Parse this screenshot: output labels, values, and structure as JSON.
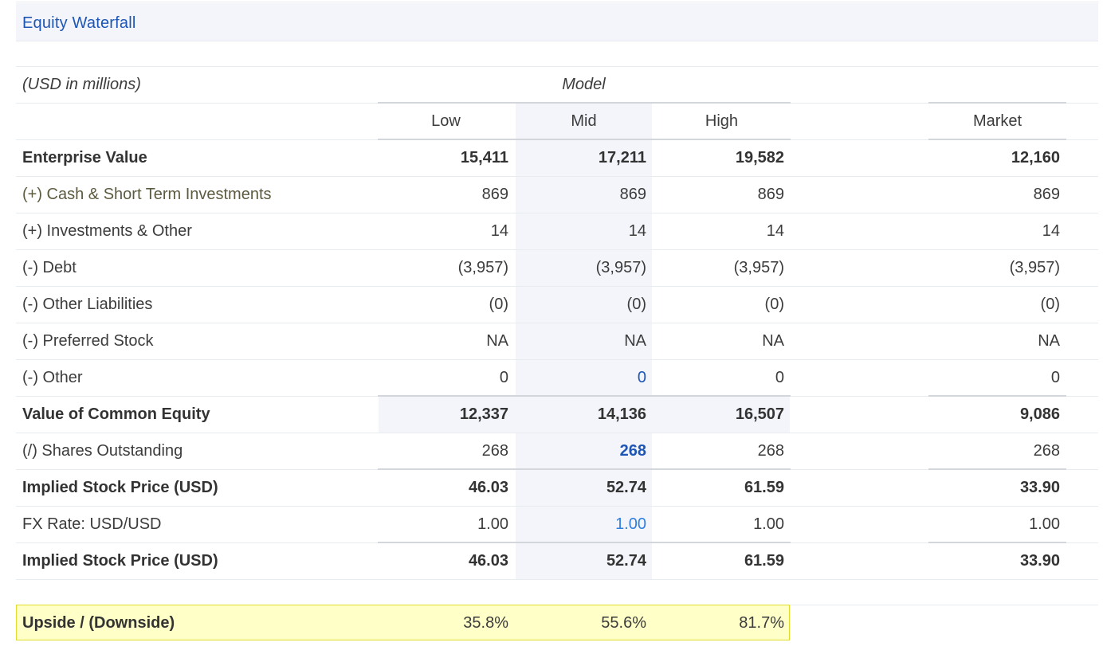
{
  "title": "Equity Waterfall",
  "units_label": "(USD in millions)",
  "model_header": "Model",
  "columns": [
    "Low",
    "Mid",
    "High",
    "Market"
  ],
  "rows": [
    {
      "label": "Enterprise Value",
      "values": [
        "15,411",
        "17,211",
        "19,582",
        "12,160"
      ]
    },
    {
      "label": "(+) Cash & Short Term Investments",
      "values": [
        "869",
        "869",
        "869",
        "869"
      ]
    },
    {
      "label": "(+) Investments & Other",
      "values": [
        "14",
        "14",
        "14",
        "14"
      ]
    },
    {
      "label": "(-) Debt",
      "values": [
        "(3,957)",
        "(3,957)",
        "(3,957)",
        "(3,957)"
      ]
    },
    {
      "label": "(-) Other Liabilities",
      "values": [
        "(0)",
        "(0)",
        "(0)",
        "(0)"
      ]
    },
    {
      "label": "(-) Preferred Stock",
      "values": [
        "NA",
        "NA",
        "NA",
        "NA"
      ]
    },
    {
      "label": "(-) Other",
      "values": [
        "0",
        "0",
        "0",
        "0"
      ]
    },
    {
      "label": "Value of Common Equity",
      "values": [
        "12,337",
        "14,136",
        "16,507",
        "9,086"
      ]
    },
    {
      "label": "(/) Shares Outstanding",
      "values": [
        "268",
        "268",
        "268",
        "268"
      ]
    },
    {
      "label": "Implied Stock Price (USD)",
      "values": [
        "46.03",
        "52.74",
        "61.59",
        "33.90"
      ]
    },
    {
      "label": "FX Rate: USD/USD",
      "values": [
        "1.00",
        "1.00",
        "1.00",
        "1.00"
      ]
    },
    {
      "label": "Implied Stock Price (USD)",
      "values": [
        "46.03",
        "52.74",
        "61.59",
        "33.90"
      ]
    }
  ],
  "upside": {
    "label": "Upside / (Downside)",
    "values": [
      "35.8%",
      "55.6%",
      "81.7%"
    ]
  },
  "colors": {
    "accent_blue": "#1d56b5",
    "light_blue": "#2f7fe0",
    "highlight_fill": "#ffffc8",
    "highlight_border": "#e0dc2a"
  }
}
